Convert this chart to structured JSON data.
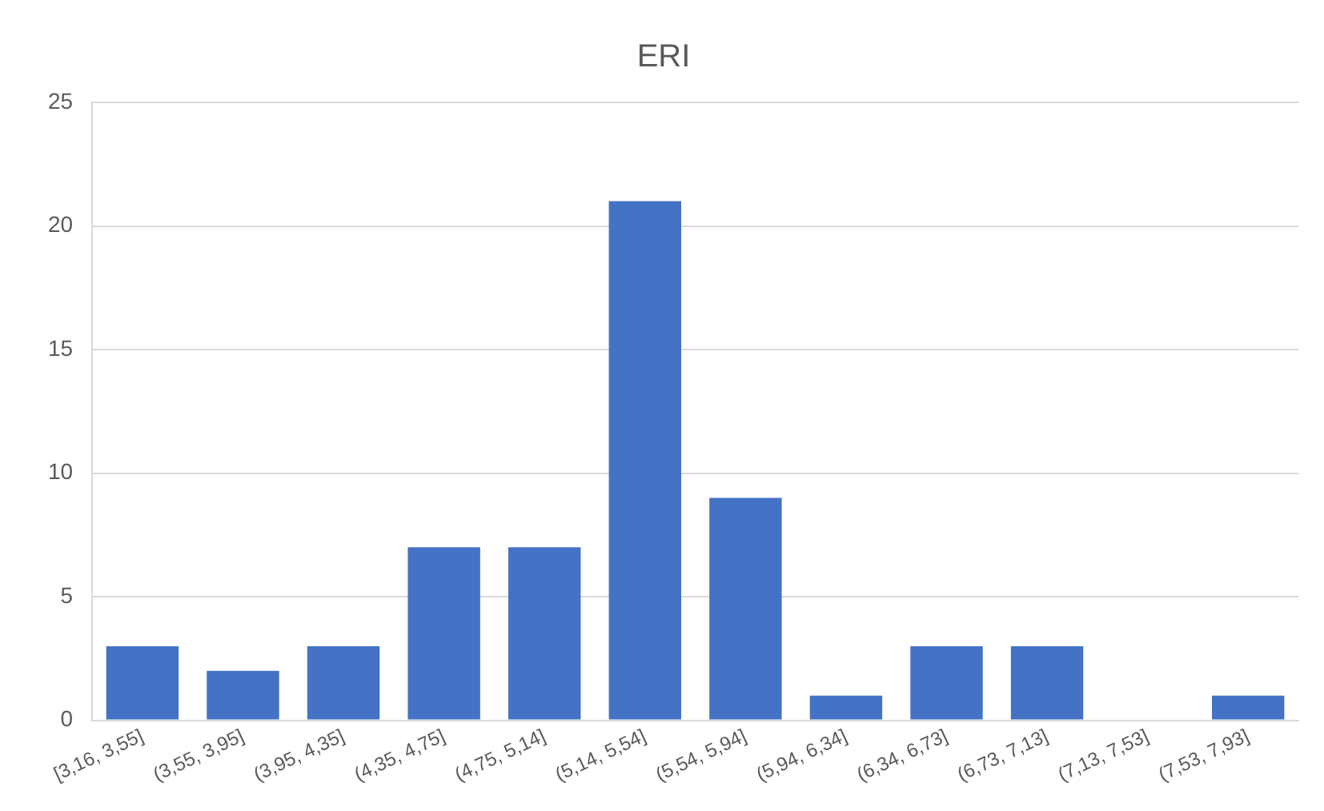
{
  "chart_data": {
    "type": "bar",
    "title": "ERI",
    "categories": [
      "[3,16, 3,55]",
      "(3,55, 3,95]",
      "(3,95, 4,35]",
      "(4,35, 4,75]",
      "(4,75, 5,14]",
      "(5,14, 5,54]",
      "(5,54, 5,94]",
      "(5,94, 6,34]",
      "(6,34, 6,73]",
      "(6,73, 7,13]",
      "(7,13, 7,53]",
      "(7,53, 7,93]"
    ],
    "values": [
      3,
      2,
      3,
      7,
      7,
      21,
      9,
      1,
      3,
      3,
      0,
      1
    ],
    "color": "#4472c4",
    "ylim": [
      0,
      25
    ],
    "yticks": [
      0,
      5,
      10,
      15,
      20,
      25
    ],
    "grid": "y"
  }
}
